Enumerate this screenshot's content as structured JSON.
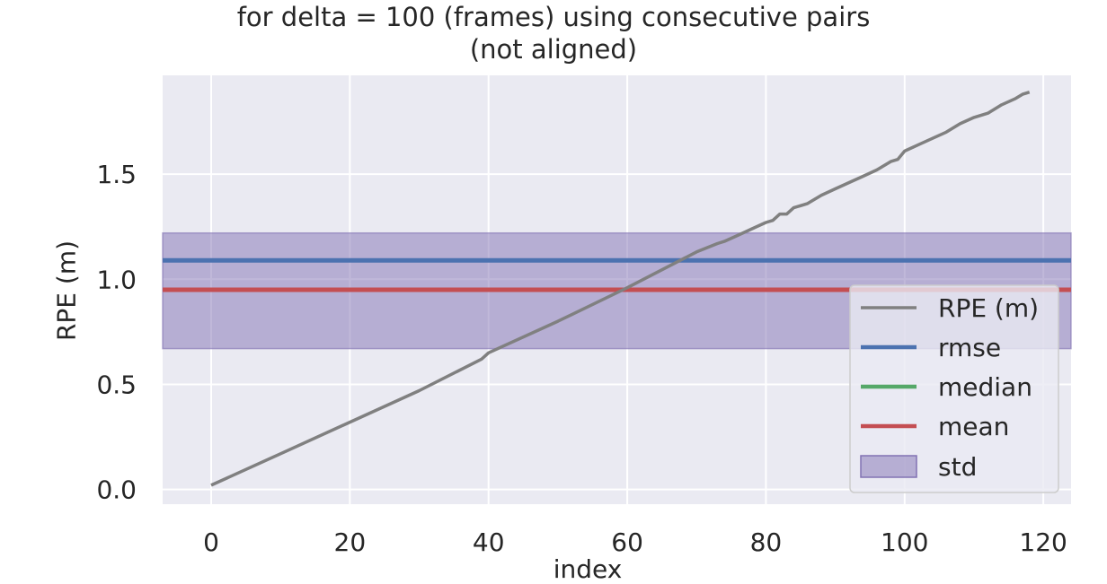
{
  "chart_data": {
    "type": "line",
    "title_line1": "for delta = 100 (frames) using consecutive pairs",
    "title_line2": "(not aligned)",
    "xlabel": "index",
    "ylabel": "RPE (m)",
    "xlim": [
      -7,
      124
    ],
    "ylim": [
      -0.07,
      1.97
    ],
    "xticks": [
      0,
      20,
      40,
      60,
      80,
      100,
      120
    ],
    "yticks": [
      0.0,
      0.5,
      1.0,
      1.5
    ],
    "ytick_labels": [
      "0.0",
      "0.5",
      "1.0",
      "1.5"
    ],
    "grid": true,
    "legend_position": "lower-right",
    "series": [
      {
        "name": "RPE (m)",
        "color": "#808080",
        "x": [
          0,
          10,
          20,
          30,
          39,
          40,
          50,
          60,
          70,
          73,
          74,
          76,
          78,
          80,
          81,
          82,
          83,
          84,
          86,
          88,
          90,
          92,
          94,
          96,
          98,
          99,
          100,
          102,
          104,
          106,
          108,
          110,
          112,
          114,
          116,
          117,
          118
        ],
        "y": [
          0.02,
          0.17,
          0.32,
          0.47,
          0.62,
          0.65,
          0.8,
          0.96,
          1.13,
          1.17,
          1.18,
          1.21,
          1.24,
          1.27,
          1.28,
          1.31,
          1.31,
          1.34,
          1.36,
          1.4,
          1.43,
          1.46,
          1.49,
          1.52,
          1.56,
          1.57,
          1.61,
          1.64,
          1.67,
          1.7,
          1.74,
          1.77,
          1.79,
          1.83,
          1.86,
          1.88,
          1.89
        ]
      }
    ],
    "statistics": [
      {
        "name": "rmse",
        "value": 1.09,
        "color": "#4c72b0"
      },
      {
        "name": "median",
        "value": 0.95,
        "color": "#55a868"
      },
      {
        "name": "mean",
        "value": 0.95,
        "color": "#c44e52"
      }
    ],
    "std_band": {
      "name": "std",
      "lower": 0.67,
      "upper": 1.22,
      "color": "#8172b3"
    },
    "legend_entries": [
      "RPE (m)",
      "rmse",
      "median",
      "mean",
      "std"
    ]
  }
}
